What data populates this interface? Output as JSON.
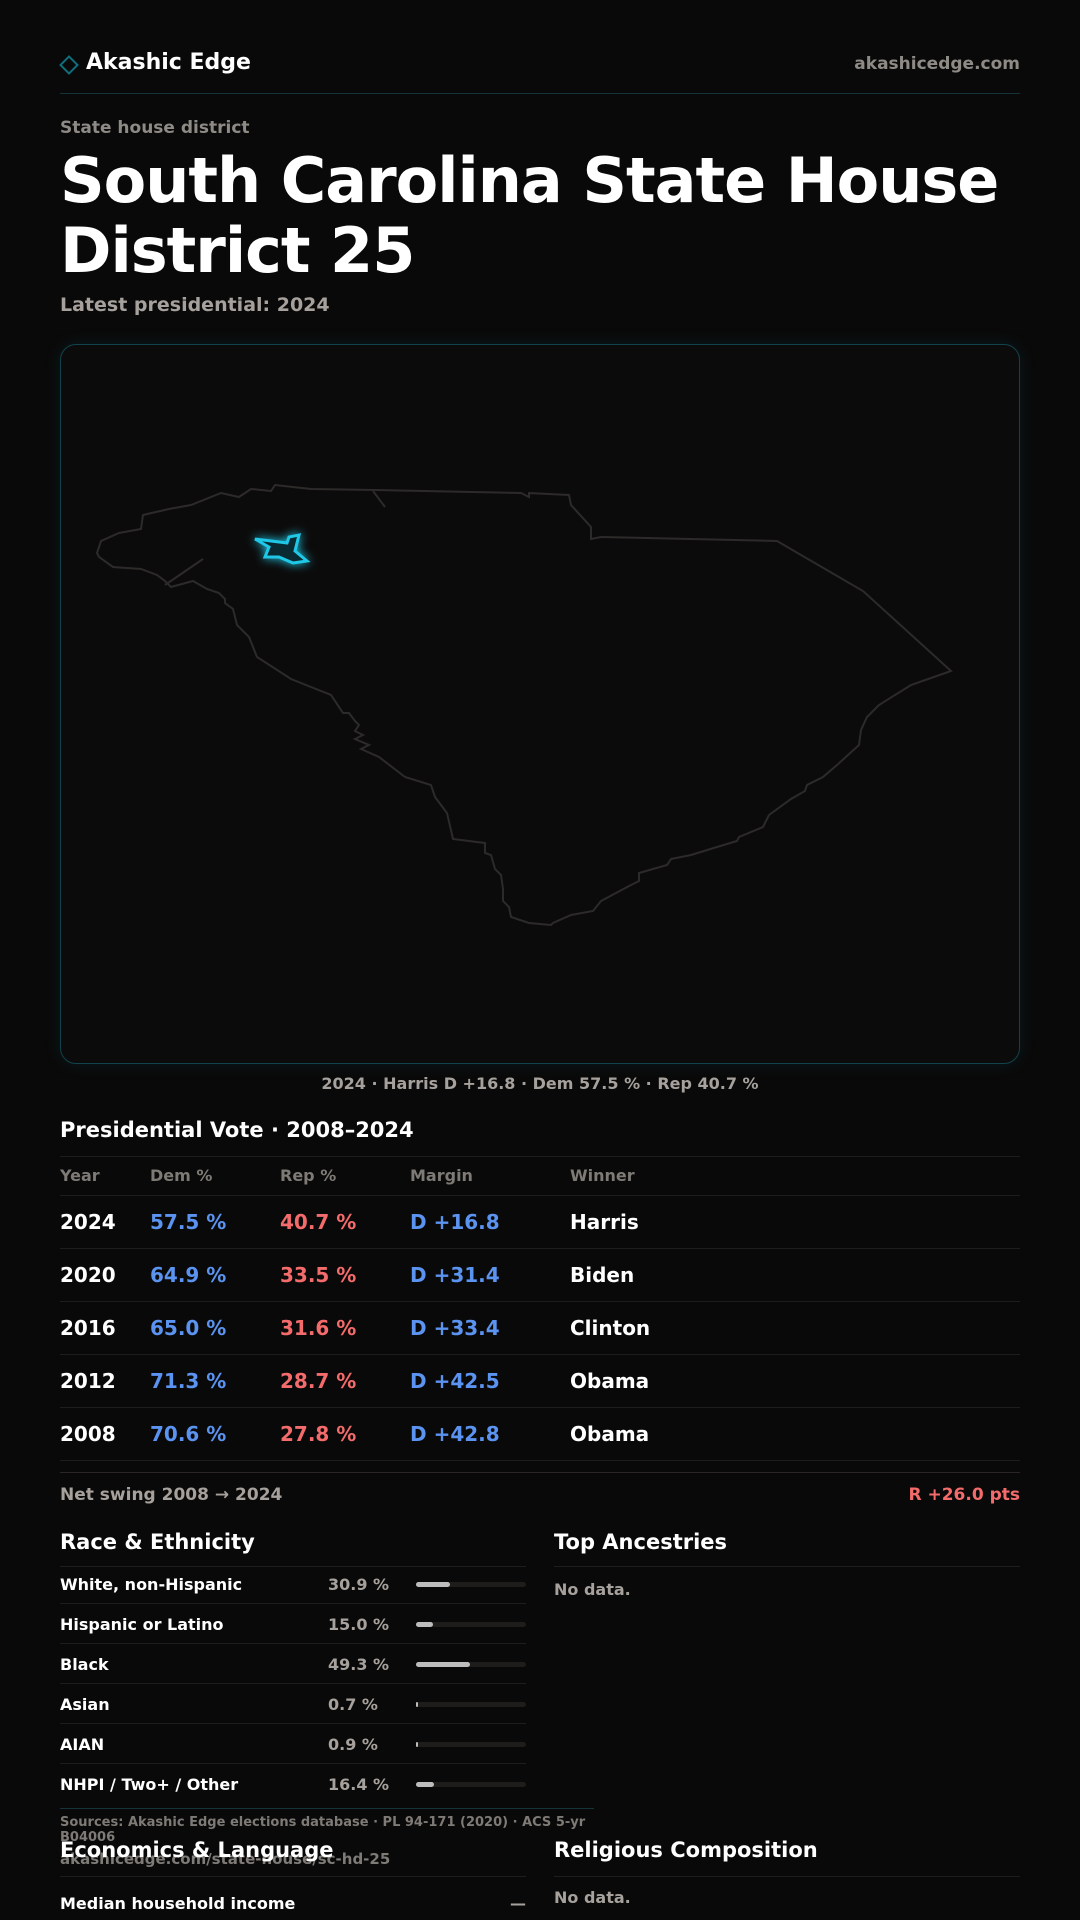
{
  "header": {
    "brand": "Akashic Edge",
    "domain": "akashicedge.com"
  },
  "eyebrow": "State house district",
  "title": "South Carolina State House District 25",
  "subtitle": "Latest presidential: 2024",
  "map": {
    "caption": "2024 · Harris D +16.8 · Dem 57.5 % · Rep 40.7 %",
    "highlight_color": "#1ec8e6"
  },
  "presidential": {
    "title": "Presidential Vote · 2008–2024",
    "columns": [
      "Year",
      "Dem %",
      "Rep %",
      "Margin",
      "Winner"
    ],
    "rows": [
      {
        "year": "2024",
        "dem": "57.5 %",
        "rep": "40.7 %",
        "margin": "D +16.8",
        "winner": "Harris"
      },
      {
        "year": "2020",
        "dem": "64.9 %",
        "rep": "33.5 %",
        "margin": "D +31.4",
        "winner": "Biden"
      },
      {
        "year": "2016",
        "dem": "65.0 %",
        "rep": "31.6 %",
        "margin": "D +33.4",
        "winner": "Clinton"
      },
      {
        "year": "2012",
        "dem": "71.3 %",
        "rep": "28.7 %",
        "margin": "D +42.5",
        "winner": "Obama"
      },
      {
        "year": "2008",
        "dem": "70.6 %",
        "rep": "27.8 %",
        "margin": "D +42.8",
        "winner": "Obama"
      }
    ],
    "swing_label": "Net swing 2008 → 2024",
    "swing_value": "R +26.0 pts"
  },
  "race": {
    "title": "Race & Ethnicity",
    "rows": [
      {
        "label": "White, non-Hispanic",
        "value": "30.9 %",
        "pct": 30.9
      },
      {
        "label": "Hispanic or Latino",
        "value": "15.0 %",
        "pct": 15.0
      },
      {
        "label": "Black",
        "value": "49.3 %",
        "pct": 49.3
      },
      {
        "label": "Asian",
        "value": "0.7 %",
        "pct": 0.7
      },
      {
        "label": "AIAN",
        "value": "0.9 %",
        "pct": 0.9
      },
      {
        "label": "NHPI / Two+ / Other",
        "value": "16.4 %",
        "pct": 16.4
      }
    ]
  },
  "ancestries": {
    "title": "Top Ancestries",
    "empty": "No data."
  },
  "economics": {
    "title": "Economics & Language",
    "rows": [
      {
        "label": "Median household income",
        "value": "—"
      }
    ]
  },
  "religion": {
    "title": "Religious Composition",
    "empty": "No data."
  },
  "sources": {
    "text": "Sources: Akashic Edge elections database · PL 94-171 (2020) · ACS 5-yr B04006",
    "url": "akashicedge.com/state-house/sc-hd-25"
  }
}
